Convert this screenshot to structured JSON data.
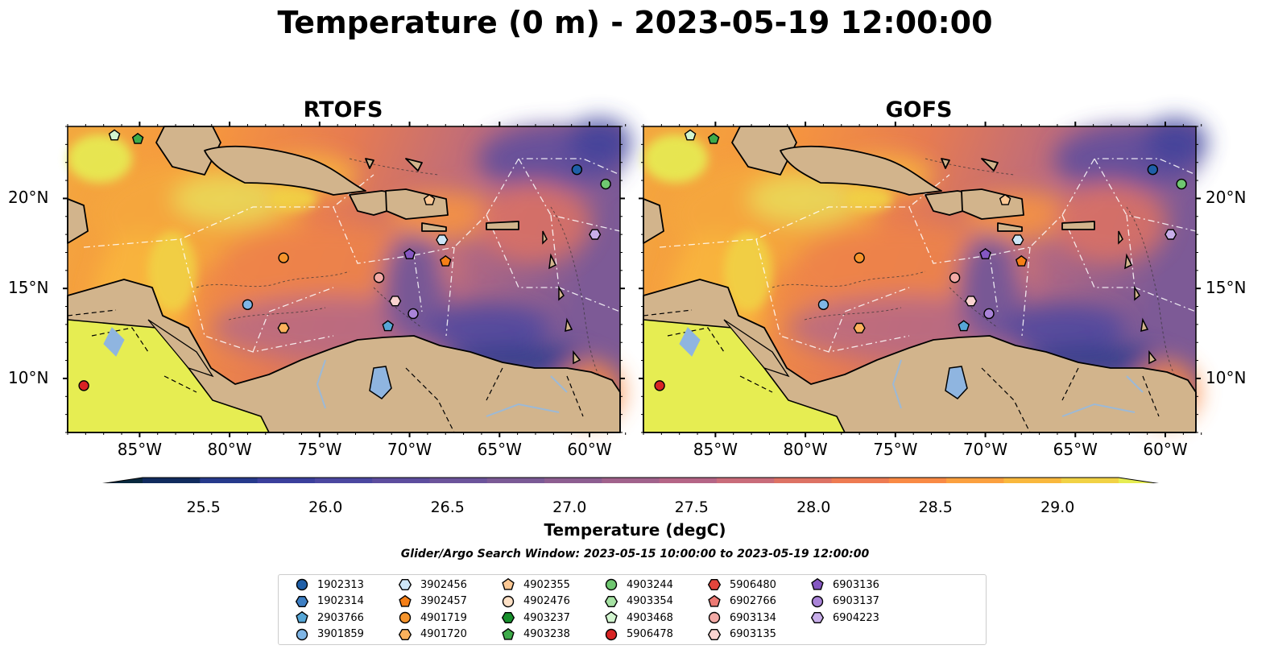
{
  "title": "Temperature (0 m) - 2023-05-19 12:00:00",
  "maps": [
    {
      "title": "RTOFS"
    },
    {
      "title": "GOFS"
    }
  ],
  "lon_ticks": [
    "85°W",
    "80°W",
    "75°W",
    "70°W",
    "65°W",
    "60°W"
  ],
  "lat_ticks": [
    "20°N",
    "15°N",
    "10°N"
  ],
  "extent": {
    "lon": [
      -89,
      -58.3
    ],
    "lat": [
      7,
      24
    ]
  },
  "colorbar": {
    "label": "Temperature (degC)",
    "ticks": [
      "25.5",
      "26.0",
      "26.5",
      "27.0",
      "27.5",
      "28.0",
      "28.5",
      "29.0"
    ],
    "range": [
      25.25,
      29.25
    ],
    "colors": [
      "#08283e",
      "#112b5e",
      "#263a8c",
      "#3b3f9c",
      "#4b47a0",
      "#5d4d9e",
      "#6c549b",
      "#7b5a96",
      "#8d5e91",
      "#a1628c",
      "#b56586",
      "#c96c7a",
      "#dd7264",
      "#ee7b52",
      "#f98a45",
      "#fba03f",
      "#f9b83d",
      "#f1d245",
      "#e6ed52"
    ]
  },
  "search_window": "Glider/Argo Search Window: 2023-05-15 10:00:00 to 2023-05-19 12:00:00",
  "platforms": [
    {
      "id": "1902313",
      "shape": "circle",
      "color": "#1f5fa8",
      "lon": -60.7,
      "lat": 21.6
    },
    {
      "id": "1902314",
      "shape": "hexagon",
      "color": "#3d7fc4",
      "lon": null,
      "lat": null
    },
    {
      "id": "2903766",
      "shape": "pentagon",
      "color": "#56a6d6",
      "lon": -71.2,
      "lat": 12.9
    },
    {
      "id": "3901859",
      "shape": "circle",
      "color": "#7fb6e6",
      "lon": -79.0,
      "lat": 14.1
    },
    {
      "id": "3902456",
      "shape": "hexagon",
      "color": "#cde6f7",
      "lon": -68.2,
      "lat": 17.7
    },
    {
      "id": "3902457",
      "shape": "pentagon",
      "color": "#f57f17",
      "lon": -68.0,
      "lat": 16.5
    },
    {
      "id": "4901719",
      "shape": "circle",
      "color": "#f5942c",
      "lon": -77.0,
      "lat": 16.7
    },
    {
      "id": "4901720",
      "shape": "hexagon",
      "color": "#fbb25c",
      "lon": -77.0,
      "lat": 12.8
    },
    {
      "id": "4902355",
      "shape": "pentagon",
      "color": "#fcc894",
      "lon": -68.9,
      "lat": 19.9
    },
    {
      "id": "4902476",
      "shape": "circle",
      "color": "#fde0c5",
      "lon": null,
      "lat": null
    },
    {
      "id": "4903237",
      "shape": "hexagon",
      "color": "#17902c",
      "lon": null,
      "lat": null
    },
    {
      "id": "4903238",
      "shape": "pentagon",
      "color": "#3eab4a",
      "lon": -85.1,
      "lat": 23.3
    },
    {
      "id": "4903244",
      "shape": "circle",
      "color": "#6fc770",
      "lon": -59.1,
      "lat": 20.8
    },
    {
      "id": "4903354",
      "shape": "hexagon",
      "color": "#a6e2a3",
      "lon": null,
      "lat": null
    },
    {
      "id": "4903468",
      "shape": "pentagon",
      "color": "#d2f5cf",
      "lon": -86.4,
      "lat": 23.5
    },
    {
      "id": "5906478",
      "shape": "circle",
      "color": "#d82424",
      "lon": -88.1,
      "lat": 9.6
    },
    {
      "id": "5906480",
      "shape": "hexagon",
      "color": "#e3453c",
      "lon": null,
      "lat": null
    },
    {
      "id": "6902766",
      "shape": "pentagon",
      "color": "#ec7a74",
      "lon": null,
      "lat": null
    },
    {
      "id": "6903134",
      "shape": "circle",
      "color": "#f2aaa6",
      "lon": -71.7,
      "lat": 15.6
    },
    {
      "id": "6903135",
      "shape": "hexagon",
      "color": "#fad3d0",
      "lon": -70.8,
      "lat": 14.3
    },
    {
      "id": "6903136",
      "shape": "pentagon",
      "color": "#8557c2",
      "lon": -70.0,
      "lat": 16.9
    },
    {
      "id": "6903137",
      "shape": "circle",
      "color": "#a983d7",
      "lon": -69.8,
      "lat": 13.6
    },
    {
      "id": "6904223",
      "shape": "hexagon",
      "color": "#c8aee9",
      "lon": -59.7,
      "lat": 18.0
    }
  ],
  "colors": {
    "land": "#d2b48c",
    "lake": "#8fb5e0",
    "rivers": "#9cb9d6"
  }
}
